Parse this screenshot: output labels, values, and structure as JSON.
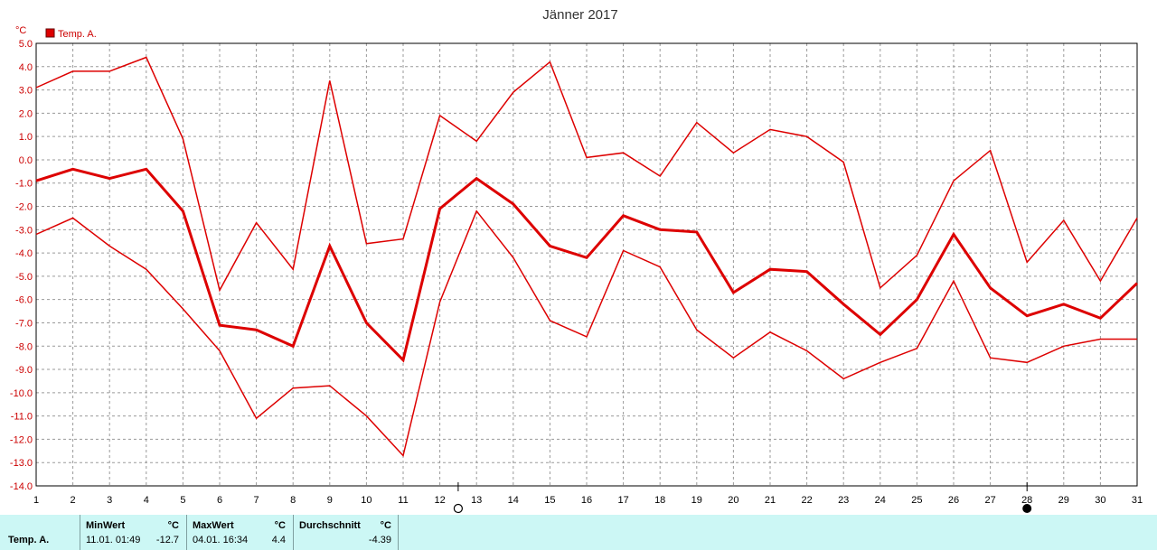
{
  "chart_data": {
    "type": "line",
    "title": "Jänner 2017",
    "y_unit": "°C",
    "legend": [
      {
        "name": "Temp. A.",
        "color": "#dd0000"
      }
    ],
    "ylim": [
      -14,
      5
    ],
    "y_ticks": [
      "5.0",
      "4.0",
      "3.0",
      "2.0",
      "1.0",
      "0.0",
      "-1.0",
      "-2.0",
      "-3.0",
      "-4.0",
      "-5.0",
      "-6.0",
      "-7.0",
      "-8.0",
      "-9.0",
      "-10.0",
      "-11.0",
      "-12.0",
      "-13.0",
      "-14.0"
    ],
    "x": [
      1,
      2,
      3,
      4,
      5,
      6,
      7,
      8,
      9,
      10,
      11,
      12,
      13,
      14,
      15,
      16,
      17,
      18,
      19,
      20,
      21,
      22,
      23,
      24,
      25,
      26,
      27,
      28,
      29,
      30,
      31
    ],
    "grid": true,
    "legend_position": "top-left",
    "series": [
      {
        "role": "max",
        "width": 1.5,
        "values": [
          3.1,
          3.8,
          3.8,
          4.4,
          0.9,
          -5.6,
          -2.7,
          -4.7,
          3.4,
          -3.6,
          -3.4,
          1.9,
          0.8,
          2.9,
          4.2,
          0.1,
          0.3,
          -0.7,
          1.6,
          0.3,
          1.3,
          1.0,
          -0.1,
          -5.5,
          -4.1,
          -0.9,
          0.4,
          -4.4,
          -2.6,
          -5.2,
          -2.5
        ]
      },
      {
        "role": "mean",
        "width": 3,
        "values": [
          -0.9,
          -0.4,
          -0.8,
          -0.4,
          -2.2,
          -7.1,
          -7.3,
          -8.0,
          -3.7,
          -7.0,
          -8.6,
          -2.1,
          -0.8,
          -1.9,
          -3.7,
          -4.2,
          -2.4,
          -3.0,
          -3.1,
          -5.7,
          -4.7,
          -4.8,
          -6.2,
          -7.5,
          -6.0,
          -3.2,
          -5.5,
          -6.7,
          -6.2,
          -6.8,
          -5.3
        ]
      },
      {
        "role": "min",
        "width": 1.5,
        "values": [
          -3.2,
          -2.5,
          -3.7,
          -4.7,
          -6.4,
          -8.2,
          -11.1,
          -9.8,
          -9.7,
          -11.0,
          -12.7,
          -6.1,
          -2.2,
          -4.2,
          -6.9,
          -7.6,
          -3.9,
          -4.6,
          -7.3,
          -8.5,
          -7.4,
          -8.2,
          -9.4,
          -8.7,
          -8.1,
          -5.2,
          -8.5,
          -8.7,
          -8.0,
          -7.7,
          -7.7
        ]
      }
    ],
    "markers": [
      {
        "x": 12.5,
        "symbol": "open-circle"
      },
      {
        "x": 28,
        "symbol": "filled-circle"
      }
    ]
  },
  "footer": {
    "series_label": "Temp. A.",
    "min_title": "MinWert",
    "min_unit": "°C",
    "min_time": "11.01.  01:49",
    "min_value": "-12.7",
    "max_title": "MaxWert",
    "max_unit": "°C",
    "max_time": "04.01.  16:34",
    "max_value": "4.4",
    "avg_title": "Durchschnitt",
    "avg_unit": "°C",
    "avg_value": "-4.39"
  }
}
